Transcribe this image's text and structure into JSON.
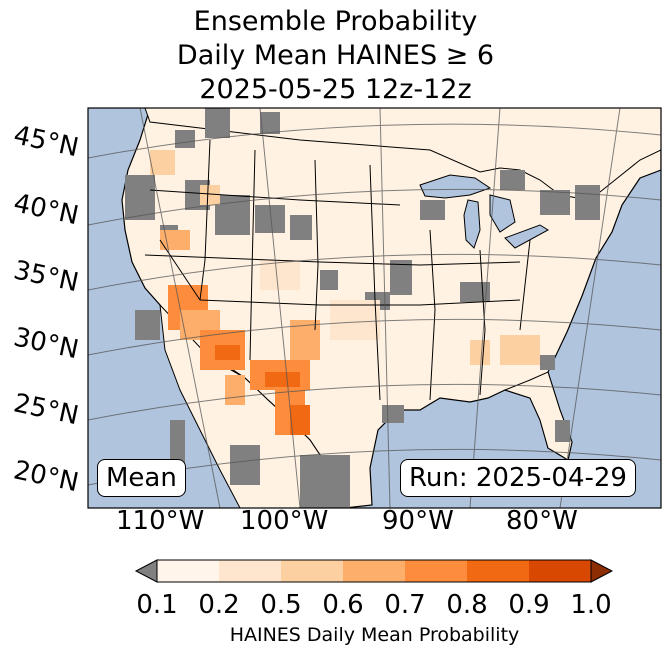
{
  "title": {
    "line1": "Ensemble Probability",
    "line2": "Daily Mean HAINES ≥ 6",
    "line3": "2025-05-25 12z-12z"
  },
  "map": {
    "lat_labels": [
      "45°N",
      "40°N",
      "35°N",
      "30°N",
      "25°N",
      "20°N"
    ],
    "lon_labels": [
      "110°W",
      "100°W",
      "90°W",
      "80°W"
    ],
    "stat_label": "Mean",
    "run_label": "Run: 2025-04-29",
    "colors": {
      "ocean": "#b0c4de",
      "land_low": "#fff4e8",
      "no_data": "#808080",
      "borders": "#000000",
      "graticule": "#555555"
    }
  },
  "colorbar": {
    "ticks": [
      "0.1",
      "0.2",
      "0.5",
      "0.6",
      "0.7",
      "0.8",
      "0.9",
      "1.0"
    ],
    "label": "HAINES Daily Mean Probability",
    "colors": [
      "#fff5eb",
      "#fee6ce",
      "#fdd0a2",
      "#fdae6b",
      "#fd8d3c",
      "#f16913",
      "#d94801"
    ],
    "under_color": "#808080",
    "over_color": "#8c2d04"
  }
}
